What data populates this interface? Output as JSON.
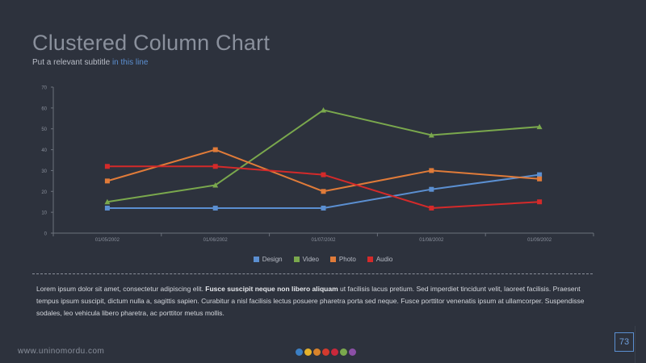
{
  "header": {
    "title": "Clustered Column Chart",
    "subtitle_prefix": "Put a relevant subtitle ",
    "subtitle_highlight": "in this line"
  },
  "chart_data": {
    "type": "line",
    "categories": [
      "01/05/2002",
      "01/06/2002",
      "01/07/2002",
      "01/08/2002",
      "01/09/2002"
    ],
    "y_ticks": [
      "0",
      "10",
      "20",
      "30",
      "40",
      "50",
      "60",
      "70"
    ],
    "ylim": [
      0,
      70
    ],
    "grid": false,
    "legend_position": "bottom",
    "series": [
      {
        "name": "Design",
        "color": "#5b8fd1",
        "marker": "square",
        "values": [
          12,
          12,
          12,
          21,
          28
        ]
      },
      {
        "name": "Video",
        "color": "#7aa84d",
        "marker": "triangle",
        "values": [
          15,
          23,
          59,
          47,
          51
        ]
      },
      {
        "name": "Photo",
        "color": "#e07b39",
        "marker": "square",
        "values": [
          25,
          40,
          20,
          30,
          26
        ]
      },
      {
        "name": "Audio",
        "color": "#d42a2a",
        "marker": "square",
        "values": [
          32,
          32,
          28,
          12,
          15
        ]
      }
    ]
  },
  "body": {
    "text_1": "Lorem ipsum dolor sit amet, consectetur adipiscing elit. ",
    "text_bold": "Fusce suscipit neque non libero aliquam",
    "text_2": " ut facilisis lacus pretium. Sed imperdiet tincidunt velit, laoreet facilisis. Praesent tempus ipsum suscipit, dictum nulla a, sagittis sapien. Curabitur a nisl facilisis lectus posuere pharetra porta sed neque. Fusce porttitor venenatis ipsum at ullamcorper. Suspendisse sodales, leo vehicula libero pharetra, ac porttitor metus mollis."
  },
  "footer": {
    "url": "www.uninomordu.com",
    "page_number": "73",
    "dot_colors": [
      "#3b7fc4",
      "#e5b22c",
      "#d9832b",
      "#d43a2e",
      "#c9283b",
      "#7aa84d",
      "#8b4fa6"
    ]
  }
}
